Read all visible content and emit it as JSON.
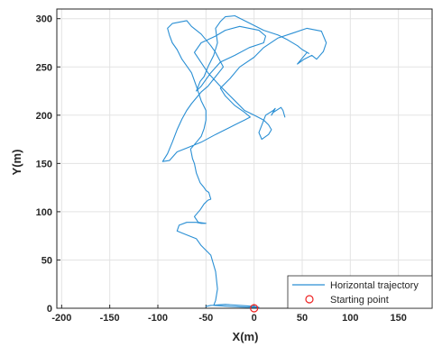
{
  "chart_data": {
    "type": "line",
    "title": "",
    "xlabel": "X(m)",
    "ylabel": "Y(m)",
    "xlim": [
      -205,
      185
    ],
    "ylim": [
      0,
      310
    ],
    "xticks": [
      -200,
      -150,
      -100,
      -50,
      0,
      50,
      100,
      150
    ],
    "yticks": [
      0,
      50,
      100,
      150,
      200,
      250,
      300
    ],
    "grid": true,
    "legend_position": "bottom-right",
    "colors": {
      "trajectory": "#2a8fd4",
      "start": "#ee2222"
    },
    "series": [
      {
        "name": "Horizontal trajectory",
        "x": [
          -50,
          -45,
          -30,
          -15,
          0,
          5,
          2,
          -8,
          -25,
          -42,
          -40,
          -38,
          -40,
          -45,
          -55,
          -60,
          -65,
          -70,
          -75,
          -80,
          -78,
          -70,
          -60,
          -55,
          -50,
          -58,
          -62,
          -56,
          -52,
          -48,
          -45,
          -47,
          -50,
          -52,
          -56,
          -58,
          -60,
          -62,
          -64,
          -66,
          -60,
          -55,
          -52,
          -50,
          -50,
          -55,
          -60,
          -65,
          -75,
          -80,
          -85,
          -88,
          -90,
          -85,
          -70,
          -65,
          -55,
          -45,
          -40,
          -32,
          -40,
          -48,
          -55,
          -60,
          -65,
          -70,
          -75,
          -80,
          -85,
          -90,
          -95,
          -88,
          -80,
          -70,
          -55,
          -40,
          -30,
          -20,
          -10,
          -4,
          -10,
          -20,
          -30,
          -35,
          -25,
          -15,
          0,
          10,
          25,
          40,
          55,
          70,
          75,
          72,
          65,
          60,
          52,
          45,
          55,
          57,
          50,
          45,
          35,
          25,
          10,
          0,
          -10,
          -20,
          -30,
          -35,
          -40,
          -38,
          -42,
          -48,
          -52,
          -56,
          -58,
          -60,
          -55,
          -45,
          -35,
          -20,
          -5,
          10,
          12,
          5,
          -15,
          -30,
          -40,
          -55,
          -62,
          -48,
          -35,
          -20,
          -10,
          0,
          10,
          15,
          18,
          15,
          8,
          5,
          12,
          20,
          22,
          18,
          20,
          28,
          30,
          32
        ],
        "y": [
          2,
          3,
          4,
          3,
          2,
          1,
          1,
          1,
          2,
          3,
          8,
          20,
          38,
          55,
          65,
          72,
          74,
          76,
          78,
          80,
          86,
          89,
          89,
          88,
          88,
          89,
          95,
          102,
          108,
          112,
          113,
          120,
          122,
          125,
          130,
          135,
          140,
          150,
          155,
          165,
          172,
          178,
          186,
          195,
          205,
          215,
          230,
          244,
          258,
          268,
          275,
          283,
          290,
          295,
          298,
          292,
          284,
          272,
          265,
          250,
          240,
          230,
          224,
          218,
          212,
          205,
          196,
          185,
          172,
          160,
          152,
          153,
          162,
          166,
          172,
          180,
          185,
          190,
          195,
          198,
          203,
          210,
          220,
          228,
          238,
          250,
          260,
          270,
          280,
          285,
          290,
          287,
          275,
          266,
          258,
          262,
          258,
          253,
          265,
          264,
          268,
          272,
          278,
          283,
          288,
          293,
          298,
          303,
          302,
          297,
          290,
          275,
          262,
          250,
          240,
          235,
          230,
          225,
          230,
          244,
          255,
          262,
          270,
          275,
          282,
          288,
          292,
          288,
          282,
          275,
          265,
          244,
          230,
          215,
          205,
          200,
          195,
          190,
          185,
          180,
          175,
          182,
          200,
          205,
          207,
          200,
          203,
          208,
          205,
          198
        ]
      },
      {
        "name": "Starting point",
        "x": [
          0
        ],
        "y": [
          0
        ]
      }
    ]
  }
}
